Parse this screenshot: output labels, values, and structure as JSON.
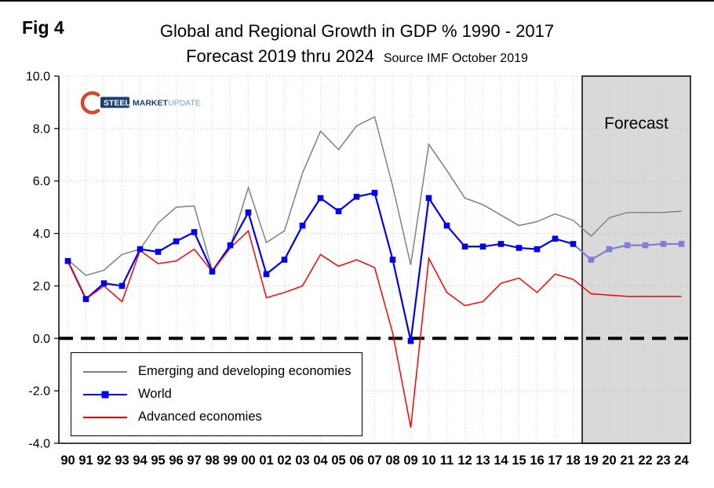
{
  "fig_label": "Fig 4",
  "logo": {
    "steel": "STEEL",
    "market": "MARKET",
    "update": "UPDATE"
  },
  "chart_data": {
    "type": "line",
    "title": "Global and Regional Growth in GDP % 1990 - 2017",
    "subtitle": "Forecast 2019 thru 2024",
    "source": "Source IMF October 2019",
    "x": [
      "90",
      "91",
      "92",
      "93",
      "94",
      "95",
      "96",
      "97",
      "98",
      "99",
      "00",
      "01",
      "02",
      "03",
      "04",
      "05",
      "06",
      "07",
      "08",
      "09",
      "10",
      "11",
      "12",
      "13",
      "14",
      "15",
      "16",
      "17",
      "18",
      "19",
      "20",
      "21",
      "22",
      "23",
      "24"
    ],
    "ylim": [
      -4,
      10
    ],
    "yticks": [
      "10.0",
      "8.0",
      "6.0",
      "4.0",
      "2.0",
      "0.0",
      "-2.0",
      "-4.0"
    ],
    "grid": "dotted",
    "zero_line": true,
    "legend_position": "lower-left",
    "forecast_band": {
      "label": "Forecast",
      "start": "19",
      "end": "24",
      "fill": "#d9d9d9"
    },
    "series": [
      {
        "name": "Emerging and developing economies",
        "color": "#808080",
        "values": [
          3.0,
          2.4,
          2.6,
          3.2,
          3.4,
          4.4,
          5.0,
          5.05,
          2.6,
          3.5,
          5.75,
          3.65,
          4.1,
          6.3,
          7.9,
          7.2,
          8.1,
          8.45,
          5.8,
          2.8,
          7.4,
          6.4,
          5.35,
          5.1,
          4.7,
          4.3,
          4.45,
          4.75,
          4.5,
          3.9,
          4.6,
          4.8,
          4.8,
          4.8,
          4.85
        ]
      },
      {
        "name": "World",
        "color": "#0000ee",
        "forecast_color": "#7e7ed8",
        "marker": "square",
        "values": [
          2.95,
          1.5,
          2.1,
          2.0,
          3.4,
          3.3,
          3.7,
          4.05,
          2.55,
          3.55,
          4.8,
          2.45,
          3.0,
          4.3,
          5.35,
          4.85,
          5.4,
          5.55,
          3.0,
          -0.1,
          5.35,
          4.3,
          3.5,
          3.5,
          3.6,
          3.45,
          3.4,
          3.8,
          3.6,
          3.0,
          3.4,
          3.55,
          3.55,
          3.6,
          3.6
        ]
      },
      {
        "name": "Advanced economies",
        "color": "#ff0000",
        "values": [
          2.95,
          1.5,
          2.0,
          1.4,
          3.35,
          2.85,
          2.95,
          3.4,
          2.55,
          3.45,
          4.1,
          1.55,
          1.75,
          2.0,
          3.2,
          2.75,
          3.0,
          2.7,
          0.2,
          -3.4,
          3.05,
          1.75,
          1.25,
          1.4,
          2.1,
          2.3,
          1.75,
          2.45,
          2.25,
          1.7,
          1.65,
          1.6,
          1.6,
          1.6,
          1.6
        ]
      }
    ]
  }
}
